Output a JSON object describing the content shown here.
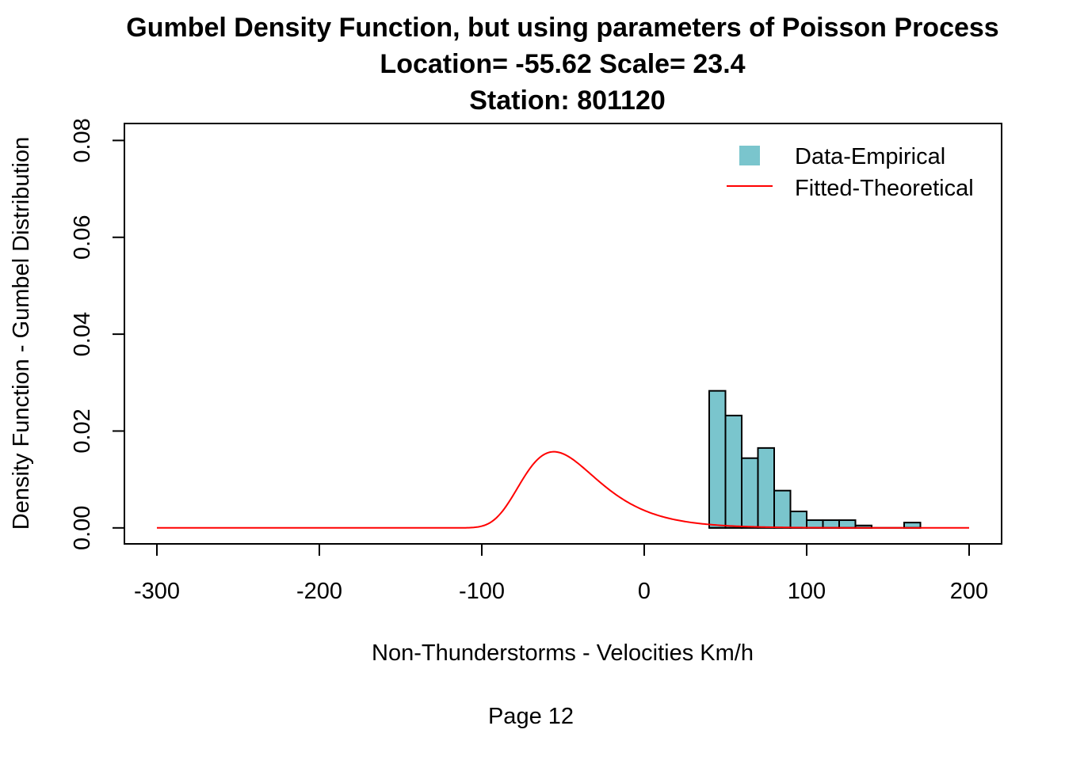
{
  "chart_data": {
    "type": "bar",
    "title_lines": [
      "Gumbel Density Function, but using parameters of Poisson Process",
      "Location= -55.62  Scale= 23.4",
      "Station: 801120"
    ],
    "xlabel": "Non-Thunderstorms - Velocities Km/h",
    "ylabel": "Density Function - Gumbel Distribution",
    "xlim": [
      -320,
      220
    ],
    "ylim": [
      -0.0033,
      0.0835
    ],
    "x_ticks": [
      -300,
      -200,
      -100,
      0,
      100,
      200
    ],
    "x_tick_labels": [
      "-300",
      "-200",
      "-100",
      "0",
      "100",
      "200"
    ],
    "y_ticks": [
      0.0,
      0.02,
      0.04,
      0.06,
      0.08
    ],
    "y_tick_labels": [
      "0.00",
      "0.02",
      "0.04",
      "0.06",
      "0.08"
    ],
    "legend_position": "top-right",
    "series": [
      {
        "name": "Data-Empirical",
        "kind": "histogram",
        "color": "#7AC5CD",
        "bin_edges": [
          40,
          50,
          60,
          70,
          80,
          90,
          100,
          110,
          120,
          130,
          140,
          150,
          160,
          170
        ],
        "values": [
          0.0283,
          0.0232,
          0.0144,
          0.0165,
          0.0077,
          0.0034,
          0.0016,
          0.0016,
          0.0016,
          0.0005,
          0,
          0,
          0.0011
        ]
      },
      {
        "name": "Fitted-Theoretical",
        "kind": "gumbel-density",
        "color": "#FF0000",
        "location": -55.62,
        "scale": 23.4,
        "x_range": [
          -300,
          200
        ]
      }
    ]
  },
  "footer": {
    "page_label": "Page 12"
  }
}
